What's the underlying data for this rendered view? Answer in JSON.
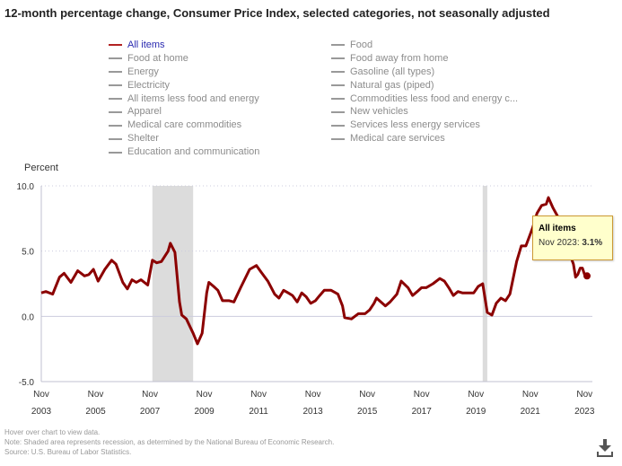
{
  "title": "12-month percentage change, Consumer Price Index, selected categories, not seasonally adjusted",
  "legend": {
    "col1": [
      {
        "label": "All items",
        "active": true
      },
      {
        "label": "Food at home",
        "active": false
      },
      {
        "label": "Energy",
        "active": false
      },
      {
        "label": "Electricity",
        "active": false
      },
      {
        "label": "All items less food and energy",
        "active": false
      },
      {
        "label": "Apparel",
        "active": false
      },
      {
        "label": "Medical care commodities",
        "active": false
      },
      {
        "label": "Shelter",
        "active": false
      },
      {
        "label": "Education and communication",
        "active": false
      }
    ],
    "col2": [
      {
        "label": "Food",
        "active": false
      },
      {
        "label": "Food away from home",
        "active": false
      },
      {
        "label": "Gasoline (all types)",
        "active": false
      },
      {
        "label": "Natural gas (piped)",
        "active": false
      },
      {
        "label": "Commodities less food and energy c...",
        "active": false
      },
      {
        "label": "New vehicles",
        "active": false
      },
      {
        "label": "Services less energy services",
        "active": false
      },
      {
        "label": "Medical care services",
        "active": false
      }
    ]
  },
  "tooltip": {
    "series": "All items",
    "date": "Nov 2023",
    "value": "3.1%"
  },
  "notes": {
    "hover": "Hover over chart to view data.",
    "note": "Note: Shaded area represents recession, as determined by the National Bureau of Economic Research.",
    "source": "Source: U.S. Bureau of Labor Statistics."
  },
  "icons": {
    "download": "download-icon"
  },
  "colors": {
    "series": "#8b0000",
    "recession": "#dcdcdc",
    "tooltip_bg": "#ffffcc"
  },
  "chart_data": {
    "type": "line",
    "title": "12-month percentage change, Consumer Price Index, selected categories, not seasonally adjusted",
    "ylabel": "Percent",
    "xlabel": "",
    "ylim": [
      -5.0,
      10.0
    ],
    "yticks": [
      "10.0",
      "5.0",
      "0.0",
      "-5.0"
    ],
    "ytick_values": [
      10,
      5,
      0,
      -5
    ],
    "xlim": [
      "Nov 2003",
      "Nov 2023"
    ],
    "xticks": [
      {
        "month": "Nov",
        "year": "2003"
      },
      {
        "month": "Nov",
        "year": "2005"
      },
      {
        "month": "Nov",
        "year": "2007"
      },
      {
        "month": "Nov",
        "year": "2009"
      },
      {
        "month": "Nov",
        "year": "2011"
      },
      {
        "month": "Nov",
        "year": "2013"
      },
      {
        "month": "Nov",
        "year": "2015"
      },
      {
        "month": "Nov",
        "year": "2017"
      },
      {
        "month": "Nov",
        "year": "2019"
      },
      {
        "month": "Nov",
        "year": "2021"
      },
      {
        "month": "Nov",
        "year": "2023"
      }
    ],
    "grid": "horizontal dotted",
    "recessions": [
      {
        "start": 2007.92,
        "end": 2009.42
      },
      {
        "start": 2020.08,
        "end": 2020.25
      }
    ],
    "series": [
      {
        "name": "All items",
        "points": [
          [
            2003.83,
            1.8
          ],
          [
            2004.0,
            1.9
          ],
          [
            2004.25,
            1.7
          ],
          [
            2004.5,
            3.0
          ],
          [
            2004.67,
            3.3
          ],
          [
            2004.92,
            2.6
          ],
          [
            2005.17,
            3.5
          ],
          [
            2005.42,
            3.1
          ],
          [
            2005.58,
            3.2
          ],
          [
            2005.75,
            3.6
          ],
          [
            2005.92,
            2.7
          ],
          [
            2006.17,
            3.6
          ],
          [
            2006.42,
            4.3
          ],
          [
            2006.58,
            4.0
          ],
          [
            2006.83,
            2.6
          ],
          [
            2007.0,
            2.1
          ],
          [
            2007.17,
            2.8
          ],
          [
            2007.33,
            2.6
          ],
          [
            2007.5,
            2.8
          ],
          [
            2007.75,
            2.4
          ],
          [
            2007.92,
            4.3
          ],
          [
            2008.08,
            4.1
          ],
          [
            2008.25,
            4.2
          ],
          [
            2008.5,
            5.0
          ],
          [
            2008.58,
            5.6
          ],
          [
            2008.75,
            4.9
          ],
          [
            2008.92,
            1.1
          ],
          [
            2009.0,
            0.1
          ],
          [
            2009.17,
            -0.2
          ],
          [
            2009.42,
            -1.3
          ],
          [
            2009.58,
            -2.1
          ],
          [
            2009.75,
            -1.3
          ],
          [
            2009.92,
            1.8
          ],
          [
            2010.0,
            2.6
          ],
          [
            2010.17,
            2.3
          ],
          [
            2010.33,
            2.0
          ],
          [
            2010.5,
            1.2
          ],
          [
            2010.75,
            1.2
          ],
          [
            2010.92,
            1.1
          ],
          [
            2011.17,
            2.2
          ],
          [
            2011.5,
            3.6
          ],
          [
            2011.75,
            3.9
          ],
          [
            2011.92,
            3.4
          ],
          [
            2012.17,
            2.7
          ],
          [
            2012.42,
            1.7
          ],
          [
            2012.58,
            1.4
          ],
          [
            2012.75,
            2.0
          ],
          [
            2012.92,
            1.8
          ],
          [
            2013.08,
            1.6
          ],
          [
            2013.25,
            1.1
          ],
          [
            2013.42,
            1.8
          ],
          [
            2013.58,
            1.5
          ],
          [
            2013.75,
            1.0
          ],
          [
            2013.92,
            1.2
          ],
          [
            2014.08,
            1.6
          ],
          [
            2014.25,
            2.0
          ],
          [
            2014.5,
            2.0
          ],
          [
            2014.75,
            1.7
          ],
          [
            2014.92,
            0.8
          ],
          [
            2015.0,
            -0.1
          ],
          [
            2015.25,
            -0.2
          ],
          [
            2015.5,
            0.2
          ],
          [
            2015.75,
            0.2
          ],
          [
            2015.92,
            0.5
          ],
          [
            2016.08,
            1.0
          ],
          [
            2016.17,
            1.4
          ],
          [
            2016.33,
            1.1
          ],
          [
            2016.5,
            0.8
          ],
          [
            2016.67,
            1.1
          ],
          [
            2016.92,
            1.7
          ],
          [
            2017.08,
            2.7
          ],
          [
            2017.33,
            2.2
          ],
          [
            2017.5,
            1.6
          ],
          [
            2017.67,
            1.9
          ],
          [
            2017.83,
            2.2
          ],
          [
            2018.0,
            2.2
          ],
          [
            2018.25,
            2.5
          ],
          [
            2018.5,
            2.9
          ],
          [
            2018.67,
            2.7
          ],
          [
            2018.83,
            2.2
          ],
          [
            2019.0,
            1.6
          ],
          [
            2019.17,
            1.9
          ],
          [
            2019.33,
            1.8
          ],
          [
            2019.5,
            1.8
          ],
          [
            2019.75,
            1.8
          ],
          [
            2019.92,
            2.3
          ],
          [
            2020.08,
            2.5
          ],
          [
            2020.25,
            0.3
          ],
          [
            2020.42,
            0.1
          ],
          [
            2020.58,
            1.0
          ],
          [
            2020.75,
            1.4
          ],
          [
            2020.92,
            1.2
          ],
          [
            2021.08,
            1.7
          ],
          [
            2021.33,
            4.2
          ],
          [
            2021.5,
            5.4
          ],
          [
            2021.67,
            5.4
          ],
          [
            2021.92,
            6.8
          ],
          [
            2022.08,
            7.9
          ],
          [
            2022.25,
            8.5
          ],
          [
            2022.42,
            8.6
          ],
          [
            2022.5,
            9.1
          ],
          [
            2022.67,
            8.3
          ],
          [
            2022.83,
            7.7
          ],
          [
            2022.92,
            7.1
          ],
          [
            2023.08,
            6.0
          ],
          [
            2023.25,
            5.0
          ],
          [
            2023.42,
            4.0
          ],
          [
            2023.5,
            3.0
          ],
          [
            2023.58,
            3.2
          ],
          [
            2023.67,
            3.7
          ],
          [
            2023.75,
            3.7
          ],
          [
            2023.83,
            3.2
          ],
          [
            2023.92,
            3.1
          ]
        ],
        "highlight": {
          "x": 2023.92,
          "y": 3.1,
          "label": "Nov 2023"
        }
      }
    ],
    "legend_position": "top"
  }
}
